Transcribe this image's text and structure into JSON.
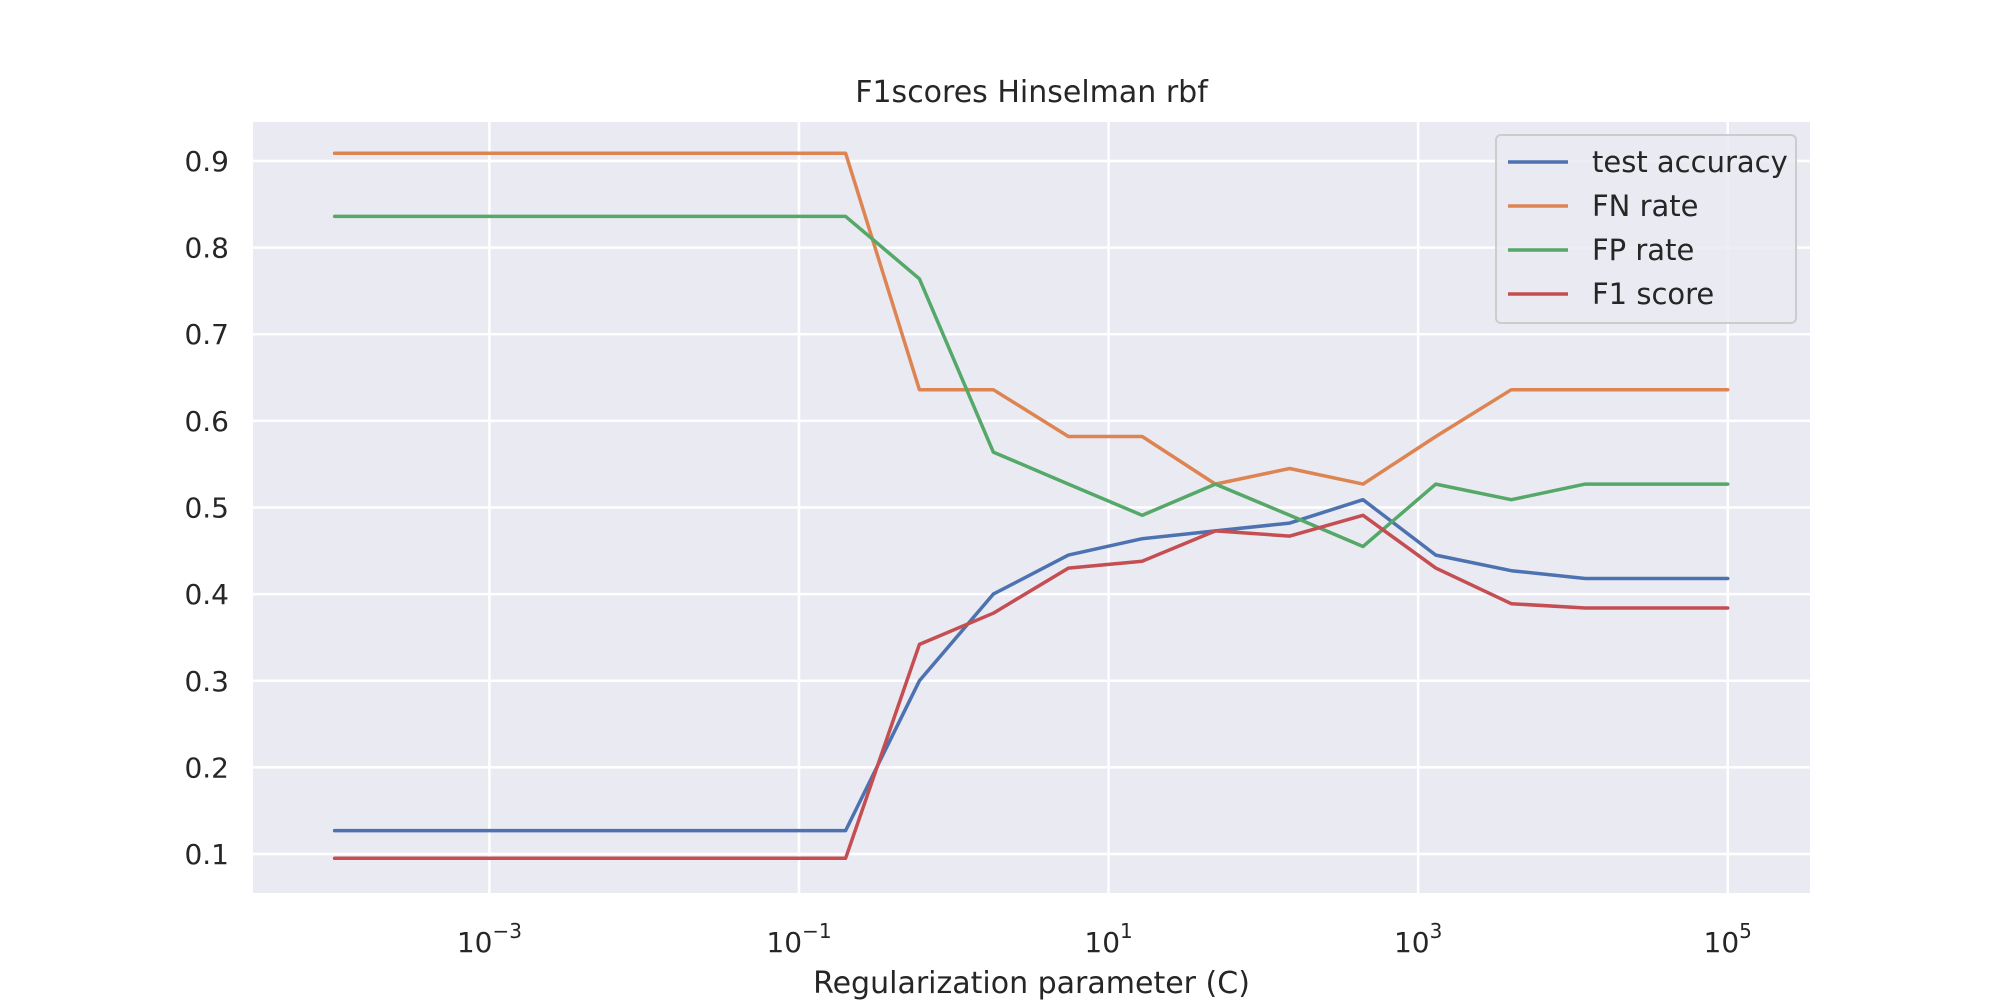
{
  "chart_data": {
    "type": "line",
    "title": "F1scores Hinselman rbf",
    "xlabel": "Regularization parameter (C)",
    "ylabel": "",
    "xscale": "log",
    "xlim": [
      2.97e-05,
      340000
    ],
    "ylim": [
      0.055,
      0.945
    ],
    "grid": true,
    "legend_position": "top-right",
    "x_ticks": [
      {
        "base": "10",
        "exp": "−3",
        "value": 0.001
      },
      {
        "base": "10",
        "exp": "−1",
        "value": 0.1
      },
      {
        "base": "10",
        "exp": "1",
        "value": 10
      },
      {
        "base": "10",
        "exp": "3",
        "value": 1000
      },
      {
        "base": "10",
        "exp": "5",
        "value": 100000
      }
    ],
    "y_ticks": [
      "0.1",
      "0.2",
      "0.3",
      "0.4",
      "0.5",
      "0.6",
      "0.7",
      "0.8",
      "0.9"
    ],
    "x": [
      0.0001,
      0.2,
      0.6,
      1.8,
      5.5,
      16.5,
      49,
      148,
      440,
      1300,
      4000,
      12000,
      100000
    ],
    "series": [
      {
        "name": "test accuracy",
        "color": "#4c72b0",
        "values": [
          0.127,
          0.127,
          0.3,
          0.4,
          0.445,
          0.464,
          0.473,
          0.482,
          0.509,
          0.445,
          0.427,
          0.418,
          0.418
        ]
      },
      {
        "name": "FN rate",
        "color": "#dd8452",
        "values": [
          0.909,
          0.909,
          0.636,
          0.636,
          0.582,
          0.582,
          0.527,
          0.545,
          0.527,
          0.582,
          0.636,
          0.636,
          0.636
        ]
      },
      {
        "name": "FP rate",
        "color": "#55a868",
        "values": [
          0.836,
          0.836,
          0.764,
          0.564,
          0.527,
          0.491,
          0.527,
          0.491,
          0.455,
          0.527,
          0.509,
          0.527,
          0.527
        ]
      },
      {
        "name": "F1 score",
        "color": "#c44e52",
        "values": [
          0.095,
          0.095,
          0.342,
          0.378,
          0.43,
          0.438,
          0.473,
          0.467,
          0.491,
          0.43,
          0.389,
          0.384,
          0.384
        ]
      }
    ]
  },
  "style": {
    "plot_background": "#eaeaf2",
    "grid_color": "#ffffff",
    "legend_border": "#cccccc"
  }
}
